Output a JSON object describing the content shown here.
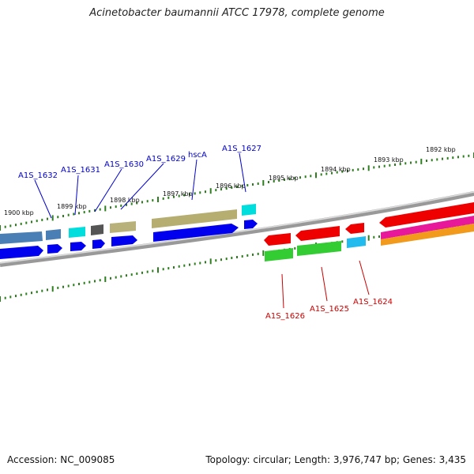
{
  "title": "Acinetobacter baumannii ATCC 17978, complete genome",
  "footer": {
    "accession": "Accession: NC_009085",
    "summary": "Topology: circular; Length: 3,976,747 bp; Genes: 3,435"
  },
  "colors": {
    "forward_label": "#0000cc",
    "reverse_label": "#cc0000",
    "tick": "#2e7d1e",
    "backbone": "#888888"
  },
  "ticks": [
    {
      "label": "1900 kbp"
    },
    {
      "label": "1899 kbp"
    },
    {
      "label": "1898 kbp"
    },
    {
      "label": "1897 kbp"
    },
    {
      "label": "1896 kbp"
    },
    {
      "label": "1895 kbp"
    },
    {
      "label": "1894 kbp"
    },
    {
      "label": "1893 kbp"
    },
    {
      "label": "1892 kbp"
    }
  ],
  "forward_labels": [
    {
      "text": "A1S_1632"
    },
    {
      "text": "A1S_1631"
    },
    {
      "text": "A1S_1630"
    },
    {
      "text": "A1S_1629"
    },
    {
      "text": "hscA"
    },
    {
      "text": "A1S_1627"
    }
  ],
  "reverse_labels": [
    {
      "text": "A1S_1626"
    },
    {
      "text": "A1S_1625"
    },
    {
      "text": "A1S_1624"
    }
  ]
}
